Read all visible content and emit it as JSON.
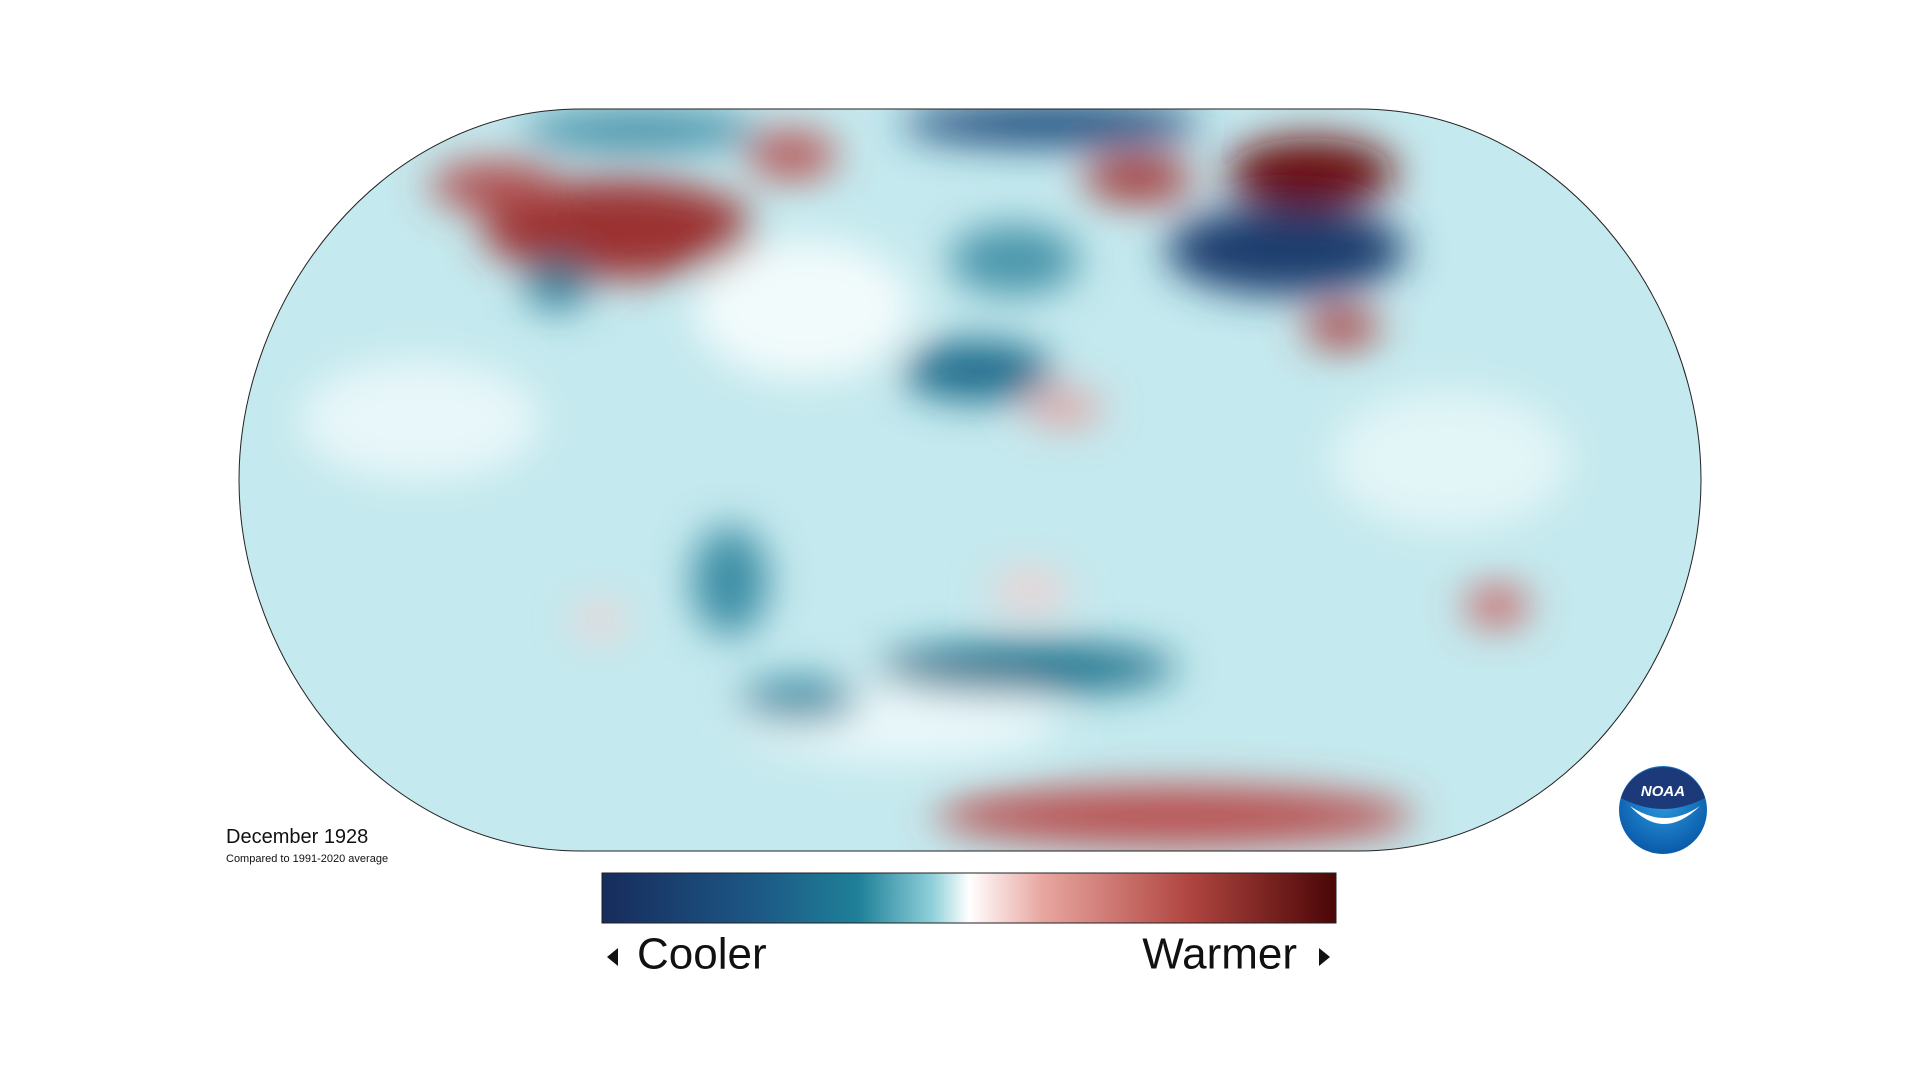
{
  "caption": {
    "title": "December 1928",
    "subtitle": "Compared to 1991-2020 average"
  },
  "legend": {
    "low_label": "Cooler",
    "high_label": "Warmer"
  },
  "logo": {
    "text": "NOAA"
  }
}
